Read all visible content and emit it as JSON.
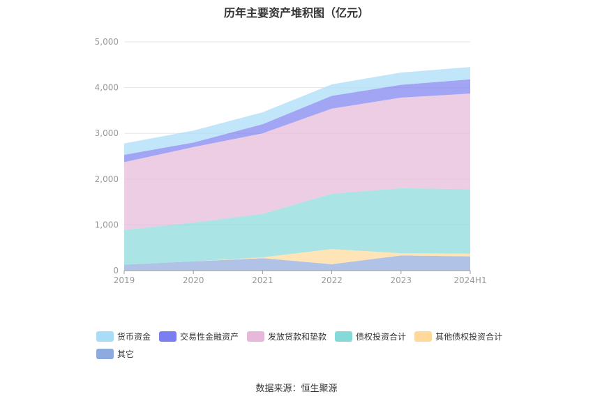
{
  "chart_data": {
    "type": "area",
    "stacked": true,
    "title": "历年主要资产堆积图（亿元）",
    "categories": [
      "2019",
      "2020",
      "2021",
      "2022",
      "2023",
      "2024H1"
    ],
    "ylim": [
      0,
      5000
    ],
    "yticks": [
      "0",
      "1,000",
      "2,000",
      "3,000",
      "4,000",
      "5,000"
    ],
    "grid": true,
    "legend_position": "bottom",
    "series": [
      {
        "name": "其它",
        "color": "#8faadc",
        "values": [
          130,
          200,
          270,
          140,
          330,
          310
        ]
      },
      {
        "name": "其他债权投资合计",
        "color": "#ffd99a",
        "values": [
          0,
          0,
          20,
          330,
          50,
          60
        ]
      },
      {
        "name": "债权投资合计",
        "color": "#86d9d9",
        "values": [
          760,
          850,
          950,
          1210,
          1420,
          1410
        ]
      },
      {
        "name": "发放贷款和垫款",
        "color": "#e6b8d9",
        "values": [
          1480,
          1650,
          1760,
          1860,
          1980,
          2090
        ]
      },
      {
        "name": "交易性金融资产",
        "color": "#7b7ef0",
        "values": [
          160,
          100,
          200,
          280,
          280,
          310
        ]
      },
      {
        "name": "货币资金",
        "color": "#a8dcf7",
        "values": [
          250,
          260,
          260,
          250,
          270,
          270
        ]
      }
    ],
    "legend_order": [
      "货币资金",
      "交易性金融资产",
      "发放贷款和垫款",
      "债权投资合计",
      "其他债权投资合计",
      "其它"
    ]
  },
  "source": "数据来源：恒生聚源"
}
